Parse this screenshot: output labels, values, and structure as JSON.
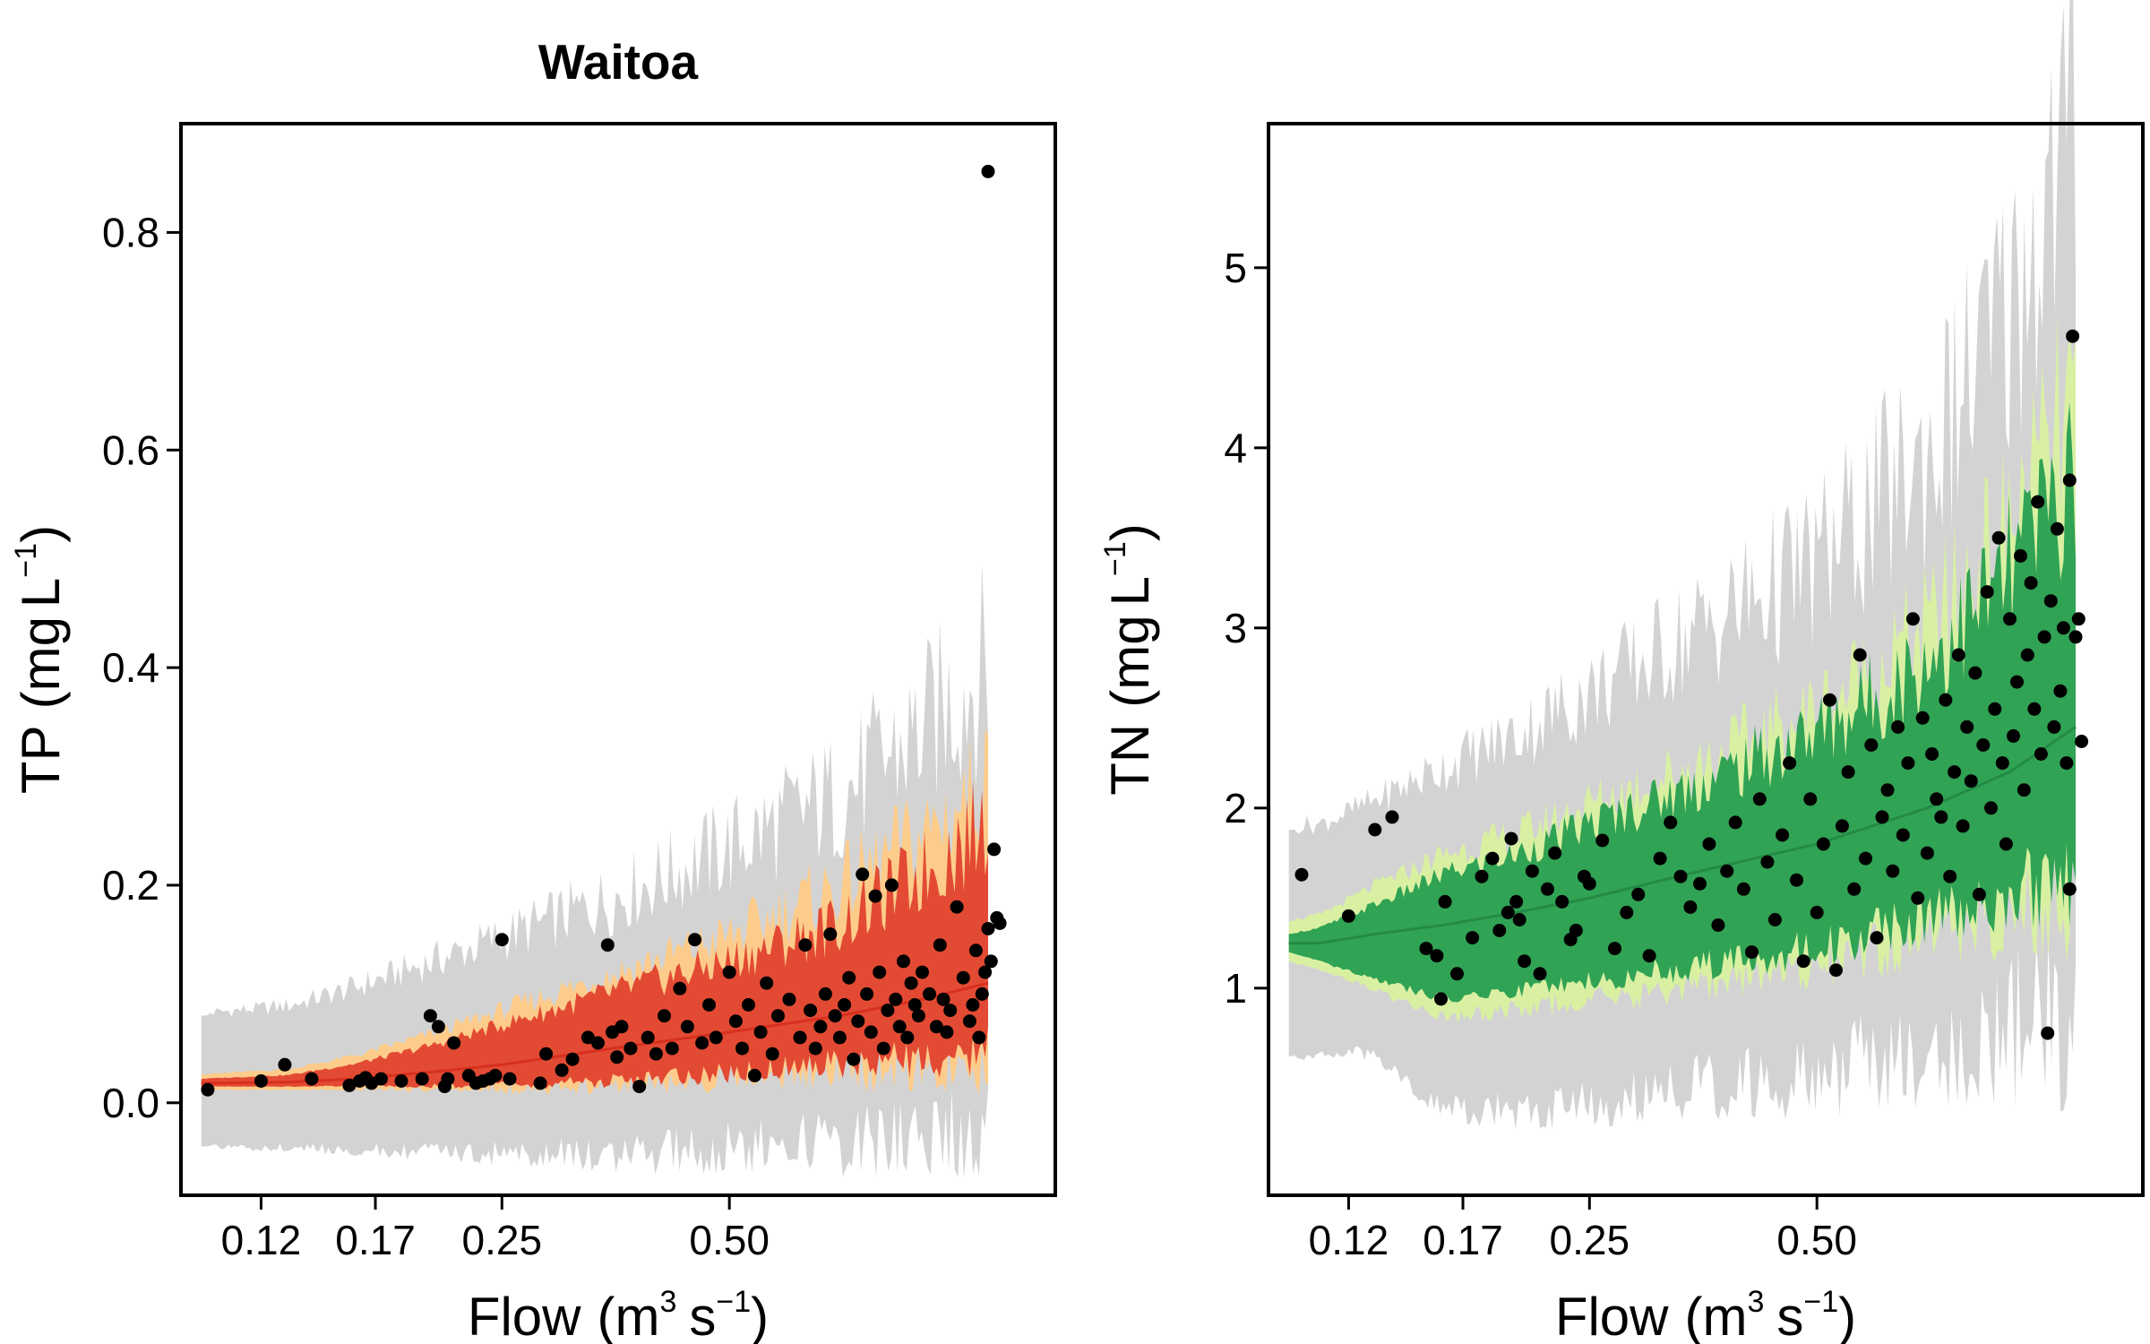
{
  "chart_data": [
    {
      "type": "scatter",
      "title": "Waitoa",
      "xlabel": "Flow",
      "xlabel_unit": {
        "base": "m",
        "base_exp": "3",
        "second": "s",
        "second_exp": "−1"
      },
      "ylabel": "TP",
      "ylabel_unit": {
        "base": "mg",
        "second": "L",
        "second_exp": "−1"
      },
      "x_scale": "log",
      "x_ticks": [
        0.12,
        0.17,
        0.25,
        0.5
      ],
      "x_tick_labels": [
        "0.12",
        "0.17",
        "0.25",
        "0.50"
      ],
      "xlim": [
        0.094,
        1.35
      ],
      "y_ticks": [
        0,
        0.2,
        0.4,
        0.6,
        0.8
      ],
      "y_tick_labels": [
        "0.0",
        "0.2",
        "0.4",
        "0.6",
        "0.8"
      ],
      "ylim": [
        -0.085,
        0.9
      ],
      "bands": {
        "outer": {
          "color": "#d3d3d3",
          "x": [
            0.1,
            0.13,
            0.16,
            0.2,
            0.25,
            0.35,
            0.5,
            0.7,
            0.9,
            1.1
          ],
          "lo": [
            -0.04,
            -0.04,
            -0.042,
            -0.043,
            -0.043,
            -0.042,
            -0.035,
            -0.025,
            -0.018,
            -0.015
          ],
          "hi": [
            0.08,
            0.085,
            0.1,
            0.12,
            0.14,
            0.17,
            0.21,
            0.25,
            0.3,
            0.35
          ]
        },
        "middle": {
          "color": "#fdcc8a",
          "x": [
            0.1,
            0.13,
            0.16,
            0.2,
            0.25,
            0.35,
            0.5,
            0.7,
            0.9,
            1.1
          ],
          "lo": [
            0.012,
            0.012,
            0.013,
            0.013,
            0.014,
            0.018,
            0.025,
            0.035,
            0.042,
            0.05
          ],
          "hi": [
            0.026,
            0.03,
            0.042,
            0.06,
            0.08,
            0.11,
            0.14,
            0.18,
            0.22,
            0.26
          ]
        },
        "inner": {
          "color": "#e34a33",
          "x": [
            0.1,
            0.13,
            0.16,
            0.2,
            0.25,
            0.35,
            0.5,
            0.7,
            0.9,
            1.1
          ],
          "lo": [
            0.015,
            0.015,
            0.016,
            0.016,
            0.017,
            0.022,
            0.03,
            0.04,
            0.048,
            0.055
          ],
          "hi": [
            0.022,
            0.025,
            0.035,
            0.05,
            0.068,
            0.095,
            0.12,
            0.15,
            0.19,
            0.23
          ]
        },
        "median": {
          "color": "#d7301f",
          "x": [
            0.1,
            0.13,
            0.16,
            0.2,
            0.25,
            0.35,
            0.5,
            0.7,
            0.9,
            1.1
          ],
          "y": [
            0.018,
            0.019,
            0.022,
            0.028,
            0.035,
            0.05,
            0.065,
            0.08,
            0.095,
            0.11
          ]
        }
      },
      "points": [
        [
          0.102,
          0.012
        ],
        [
          0.12,
          0.02
        ],
        [
          0.129,
          0.035
        ],
        [
          0.14,
          0.022
        ],
        [
          0.157,
          0.016
        ],
        [
          0.162,
          0.02
        ],
        [
          0.165,
          0.023
        ],
        [
          0.168,
          0.018
        ],
        [
          0.173,
          0.022
        ],
        [
          0.184,
          0.02
        ],
        [
          0.196,
          0.022
        ],
        [
          0.201,
          0.08
        ],
        [
          0.206,
          0.07
        ],
        [
          0.21,
          0.015
        ],
        [
          0.212,
          0.022
        ],
        [
          0.216,
          0.055
        ],
        [
          0.226,
          0.025
        ],
        [
          0.231,
          0.018
        ],
        [
          0.236,
          0.02
        ],
        [
          0.241,
          0.022
        ],
        [
          0.245,
          0.025
        ],
        [
          0.25,
          0.15
        ],
        [
          0.256,
          0.022
        ],
        [
          0.281,
          0.018
        ],
        [
          0.286,
          0.045
        ],
        [
          0.3,
          0.03
        ],
        [
          0.31,
          0.04
        ],
        [
          0.325,
          0.06
        ],
        [
          0.335,
          0.055
        ],
        [
          0.345,
          0.145
        ],
        [
          0.35,
          0.065
        ],
        [
          0.355,
          0.042
        ],
        [
          0.36,
          0.07
        ],
        [
          0.37,
          0.05
        ],
        [
          0.38,
          0.015
        ],
        [
          0.39,
          0.06
        ],
        [
          0.4,
          0.045
        ],
        [
          0.41,
          0.08
        ],
        [
          0.42,
          0.05
        ],
        [
          0.43,
          0.105
        ],
        [
          0.44,
          0.07
        ],
        [
          0.45,
          0.15
        ],
        [
          0.46,
          0.055
        ],
        [
          0.47,
          0.09
        ],
        [
          0.48,
          0.06
        ],
        [
          0.5,
          0.12
        ],
        [
          0.51,
          0.075
        ],
        [
          0.52,
          0.05
        ],
        [
          0.53,
          0.09
        ],
        [
          0.54,
          0.025
        ],
        [
          0.55,
          0.065
        ],
        [
          0.56,
          0.11
        ],
        [
          0.57,
          0.045
        ],
        [
          0.58,
          0.08
        ],
        [
          0.6,
          0.095
        ],
        [
          0.62,
          0.06
        ],
        [
          0.63,
          0.145
        ],
        [
          0.64,
          0.085
        ],
        [
          0.65,
          0.05
        ],
        [
          0.66,
          0.07
        ],
        [
          0.67,
          0.1
        ],
        [
          0.68,
          0.155
        ],
        [
          0.69,
          0.08
        ],
        [
          0.7,
          0.06
        ],
        [
          0.71,
          0.09
        ],
        [
          0.72,
          0.115
        ],
        [
          0.73,
          0.04
        ],
        [
          0.74,
          0.075
        ],
        [
          0.75,
          0.21
        ],
        [
          0.76,
          0.1
        ],
        [
          0.77,
          0.065
        ],
        [
          0.78,
          0.19
        ],
        [
          0.79,
          0.12
        ],
        [
          0.8,
          0.05
        ],
        [
          0.81,
          0.085
        ],
        [
          0.82,
          0.2
        ],
        [
          0.83,
          0.095
        ],
        [
          0.84,
          0.07
        ],
        [
          0.85,
          0.13
        ],
        [
          0.86,
          0.06
        ],
        [
          0.87,
          0.11
        ],
        [
          0.88,
          0.09
        ],
        [
          0.89,
          0.08
        ],
        [
          0.9,
          0.12
        ],
        [
          0.92,
          0.1
        ],
        [
          0.94,
          0.07
        ],
        [
          0.95,
          0.145
        ],
        [
          0.96,
          0.095
        ],
        [
          0.97,
          0.065
        ],
        [
          0.98,
          0.085
        ],
        [
          1.0,
          0.18
        ],
        [
          1.02,
          0.115
        ],
        [
          1.04,
          0.075
        ],
        [
          1.05,
          0.09
        ],
        [
          1.06,
          0.14
        ],
        [
          1.07,
          0.06
        ],
        [
          1.08,
          0.1
        ],
        [
          1.09,
          0.12
        ],
        [
          1.1,
          0.16
        ],
        [
          1.11,
          0.13
        ],
        [
          1.12,
          0.233
        ],
        [
          1.13,
          0.17
        ],
        [
          1.14,
          0.165
        ],
        [
          1.1,
          0.856
        ]
      ]
    },
    {
      "type": "scatter",
      "title": "",
      "xlabel": "Flow",
      "xlabel_unit": {
        "base": "m",
        "base_exp": "3",
        "second": "s",
        "second_exp": "−1"
      },
      "ylabel": "TN",
      "ylabel_unit": {
        "base": "mg",
        "second": "L",
        "second_exp": "−1"
      },
      "x_scale": "log",
      "x_ticks": [
        0.12,
        0.17,
        0.25,
        0.5
      ],
      "x_tick_labels": [
        "0.12",
        "0.17",
        "0.25",
        "0.50"
      ],
      "xlim": [
        0.094,
        1.35
      ],
      "y_ticks": [
        1,
        2,
        3,
        4,
        5
      ],
      "y_tick_labels": [
        "1",
        "2",
        "3",
        "4",
        "5"
      ],
      "ylim": [
        -0.15,
        5.8
      ],
      "bands": {
        "outer": {
          "color": "#d3d3d3",
          "x": [
            0.1,
            0.11,
            0.13,
            0.16,
            0.2,
            0.25,
            0.35,
            0.5,
            0.7,
            0.9,
            1.1
          ],
          "lo": [
            0.62,
            0.65,
            0.65,
            0.35,
            0.35,
            0.4,
            0.5,
            0.6,
            0.75,
            0.9,
            1.0
          ],
          "hi": [
            1.88,
            1.88,
            2.0,
            2.15,
            2.3,
            2.5,
            2.8,
            3.1,
            3.6,
            4.3,
            5.2
          ]
        },
        "middle": {
          "color": "#d9f0a3",
          "x": [
            0.1,
            0.11,
            0.13,
            0.16,
            0.2,
            0.25,
            0.35,
            0.5,
            0.7,
            0.9,
            1.1
          ],
          "lo": [
            1.15,
            1.1,
            1.0,
            0.85,
            0.9,
            0.95,
            1.05,
            1.15,
            1.35,
            1.5,
            1.6
          ],
          "hi": [
            1.37,
            1.4,
            1.55,
            1.7,
            1.8,
            1.95,
            2.15,
            2.4,
            2.8,
            3.3,
            3.9
          ]
        },
        "inner": {
          "color": "#31a354",
          "x": [
            0.1,
            0.11,
            0.13,
            0.16,
            0.2,
            0.25,
            0.35,
            0.5,
            0.7,
            0.9,
            1.1
          ],
          "lo": [
            1.2,
            1.15,
            1.05,
            0.95,
            1.0,
            1.05,
            1.15,
            1.25,
            1.45,
            1.6,
            1.7
          ],
          "hi": [
            1.3,
            1.33,
            1.45,
            1.6,
            1.7,
            1.85,
            2.05,
            2.3,
            2.65,
            3.1,
            3.6
          ]
        },
        "median": {
          "color": "#238b45",
          "x": [
            0.1,
            0.11,
            0.13,
            0.16,
            0.2,
            0.25,
            0.35,
            0.5,
            0.7,
            0.9,
            1.1
          ],
          "y": [
            1.25,
            1.25,
            1.3,
            1.35,
            1.42,
            1.5,
            1.65,
            1.8,
            2.0,
            2.2,
            2.45
          ]
        }
      },
      "points": [
        [
          0.104,
          1.63
        ],
        [
          0.12,
          1.4
        ],
        [
          0.13,
          1.88
        ],
        [
          0.137,
          1.95
        ],
        [
          0.152,
          1.22
        ],
        [
          0.157,
          1.18
        ],
        [
          0.159,
          0.94
        ],
        [
          0.161,
          1.48
        ],
        [
          0.167,
          1.08
        ],
        [
          0.175,
          1.28
        ],
        [
          0.18,
          1.62
        ],
        [
          0.186,
          1.72
        ],
        [
          0.19,
          1.32
        ],
        [
          0.195,
          1.42
        ],
        [
          0.197,
          1.83
        ],
        [
          0.2,
          1.48
        ],
        [
          0.202,
          1.38
        ],
        [
          0.205,
          1.15
        ],
        [
          0.21,
          1.65
        ],
        [
          0.215,
          1.08
        ],
        [
          0.22,
          1.55
        ],
        [
          0.225,
          1.75
        ],
        [
          0.23,
          1.48
        ],
        [
          0.236,
          1.27
        ],
        [
          0.24,
          1.32
        ],
        [
          0.246,
          1.62
        ],
        [
          0.25,
          1.58
        ],
        [
          0.26,
          1.82
        ],
        [
          0.27,
          1.22
        ],
        [
          0.28,
          1.42
        ],
        [
          0.29,
          1.52
        ],
        [
          0.3,
          1.18
        ],
        [
          0.31,
          1.72
        ],
        [
          0.32,
          1.92
        ],
        [
          0.33,
          1.62
        ],
        [
          0.34,
          1.45
        ],
        [
          0.35,
          1.58
        ],
        [
          0.36,
          1.8
        ],
        [
          0.37,
          1.35
        ],
        [
          0.38,
          1.65
        ],
        [
          0.39,
          1.92
        ],
        [
          0.4,
          1.55
        ],
        [
          0.41,
          1.2
        ],
        [
          0.42,
          2.05
        ],
        [
          0.43,
          1.7
        ],
        [
          0.44,
          1.38
        ],
        [
          0.45,
          1.85
        ],
        [
          0.46,
          2.25
        ],
        [
          0.47,
          1.6
        ],
        [
          0.48,
          1.15
        ],
        [
          0.49,
          2.05
        ],
        [
          0.5,
          1.42
        ],
        [
          0.51,
          1.8
        ],
        [
          0.52,
          2.6
        ],
        [
          0.53,
          1.1
        ],
        [
          0.54,
          1.9
        ],
        [
          0.55,
          2.2
        ],
        [
          0.56,
          1.55
        ],
        [
          0.57,
          2.85
        ],
        [
          0.58,
          1.72
        ],
        [
          0.59,
          2.35
        ],
        [
          0.6,
          1.28
        ],
        [
          0.61,
          1.95
        ],
        [
          0.62,
          2.1
        ],
        [
          0.63,
          1.65
        ],
        [
          0.64,
          2.45
        ],
        [
          0.65,
          1.85
        ],
        [
          0.66,
          2.25
        ],
        [
          0.67,
          3.05
        ],
        [
          0.68,
          1.5
        ],
        [
          0.69,
          2.5
        ],
        [
          0.7,
          1.75
        ],
        [
          0.71,
          2.3
        ],
        [
          0.72,
          2.05
        ],
        [
          0.73,
          1.95
        ],
        [
          0.74,
          2.6
        ],
        [
          0.75,
          1.62
        ],
        [
          0.76,
          2.2
        ],
        [
          0.77,
          2.85
        ],
        [
          0.78,
          1.9
        ],
        [
          0.79,
          2.45
        ],
        [
          0.8,
          2.15
        ],
        [
          0.81,
          2.75
        ],
        [
          0.82,
          1.52
        ],
        [
          0.83,
          2.35
        ],
        [
          0.84,
          3.2
        ],
        [
          0.85,
          2.0
        ],
        [
          0.86,
          2.55
        ],
        [
          0.87,
          3.5
        ],
        [
          0.88,
          2.25
        ],
        [
          0.89,
          1.8
        ],
        [
          0.9,
          3.05
        ],
        [
          0.91,
          2.4
        ],
        [
          0.92,
          2.7
        ],
        [
          0.93,
          3.4
        ],
        [
          0.94,
          2.1
        ],
        [
          0.95,
          2.85
        ],
        [
          0.96,
          3.25
        ],
        [
          0.97,
          2.55
        ],
        [
          0.98,
          3.7
        ],
        [
          0.99,
          2.3
        ],
        [
          1.0,
          2.95
        ],
        [
          1.01,
          0.75
        ],
        [
          1.02,
          3.15
        ],
        [
          1.03,
          2.45
        ],
        [
          1.04,
          3.55
        ],
        [
          1.05,
          2.65
        ],
        [
          1.06,
          3.0
        ],
        [
          1.07,
          2.25
        ],
        [
          1.08,
          3.82
        ],
        [
          1.09,
          4.62
        ],
        [
          1.1,
          2.95
        ],
        [
          1.11,
          3.05
        ],
        [
          1.12,
          2.37
        ],
        [
          1.08,
          1.55
        ]
      ]
    }
  ]
}
